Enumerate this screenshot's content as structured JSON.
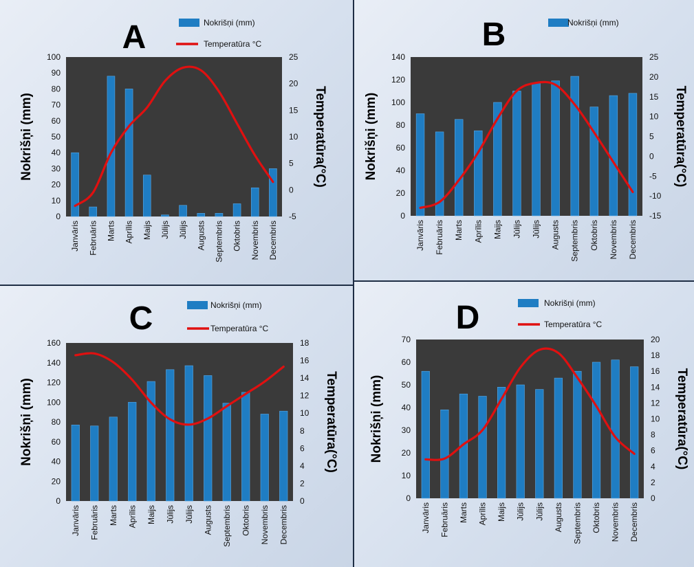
{
  "colors": {
    "plot_background": "#3a3a3a",
    "bar": "#1f7dc3",
    "bar_edge": "#5aa9e6",
    "line": "#e01010",
    "divider": "#1e2d44"
  },
  "months": [
    "Janvāris",
    "Februāris",
    "Marts",
    "Aprīlis",
    "Maijs",
    "Jūlijs",
    "Jūlijs",
    "Augusts",
    "Septembris",
    "Oktobris",
    "Novembris",
    "Decembris"
  ],
  "chart_data": [
    {
      "letter": "A",
      "type": "bar",
      "legend": {
        "bars": "Nokrišņi (mm)",
        "line": "Temperatūra °C"
      },
      "ylabel": "Nokrišņi (mm)",
      "y2label": "Temperatūra(°C)",
      "ylim": [
        0,
        100
      ],
      "yticks": [
        0,
        10,
        20,
        30,
        40,
        50,
        60,
        70,
        80,
        90,
        100
      ],
      "y2lim": [
        -5,
        25
      ],
      "y2ticks": [
        -5,
        0,
        5,
        10,
        15,
        20,
        25
      ],
      "series": [
        {
          "name": "Nokrišņi (mm)",
          "type": "bar",
          "values": [
            40,
            6,
            88,
            80,
            26,
            1,
            7,
            2,
            2,
            8,
            18,
            30
          ]
        },
        {
          "name": "Temperatūra °C",
          "type": "line",
          "values": [
            -3,
            -0.5,
            7,
            12,
            15.5,
            20.5,
            23,
            22.5,
            18.5,
            12.5,
            6.5,
            1.5
          ]
        }
      ]
    },
    {
      "letter": "B",
      "type": "bar",
      "legend": {
        "bars": "Nokrišņi (mm)",
        "line": ""
      },
      "ylabel": "Nokrišņi (mm)",
      "y2label": "Temperatūra(°C)",
      "ylim": [
        0,
        140
      ],
      "yticks": [
        0,
        20,
        40,
        60,
        80,
        100,
        120,
        140
      ],
      "y2lim": [
        -15,
        25
      ],
      "y2ticks": [
        -15,
        -10,
        -5,
        0,
        5,
        10,
        15,
        20,
        25
      ],
      "series": [
        {
          "name": "Nokrišņi (mm)",
          "type": "bar",
          "values": [
            90,
            74,
            85,
            75,
            100,
            110,
            117,
            119,
            123,
            96,
            106,
            108
          ]
        },
        {
          "name": "",
          "type": "line",
          "values": [
            -13,
            -11.5,
            -6,
            1,
            9.5,
            16.5,
            18.5,
            18,
            13,
            6,
            -1.5,
            -9
          ]
        }
      ]
    },
    {
      "letter": "C",
      "type": "bar",
      "legend": {
        "bars": "Nokrišņi (mm)",
        "line": "Temperatūra °C"
      },
      "ylabel": "Nokrišņi (mm)",
      "y2label": "Temperatūra(°C)",
      "ylim": [
        0,
        160
      ],
      "yticks": [
        0,
        20,
        40,
        60,
        80,
        100,
        120,
        140,
        160
      ],
      "y2lim": [
        0,
        18
      ],
      "y2ticks": [
        0,
        2,
        4,
        6,
        8,
        10,
        12,
        14,
        16,
        18
      ],
      "series": [
        {
          "name": "Nokrišņi (mm)",
          "type": "bar",
          "values": [
            77,
            76,
            85,
            100,
            121,
            133,
            137,
            127,
            99,
            110,
            88,
            91
          ]
        },
        {
          "name": "Temperatūra °C",
          "type": "line",
          "values": [
            16.6,
            16.8,
            15.8,
            13.8,
            11.2,
            9.3,
            8.7,
            9.4,
            10.8,
            12.2,
            13.6,
            15.3
          ]
        }
      ]
    },
    {
      "letter": "D",
      "type": "bar",
      "legend": {
        "bars": "Nokrišņi (mm)",
        "line": "Temperatūra °C"
      },
      "ylabel": "Nokrišņi (mm)",
      "y2label": "Temperatūra(°C)",
      "ylim": [
        0,
        70
      ],
      "yticks": [
        0,
        10,
        20,
        30,
        40,
        50,
        60,
        70
      ],
      "y2lim": [
        0,
        20
      ],
      "y2ticks": [
        0,
        2,
        4,
        6,
        8,
        10,
        12,
        14,
        16,
        18,
        20
      ],
      "series": [
        {
          "name": "Nokrišņi (mm)",
          "type": "bar",
          "values": [
            56,
            39,
            46,
            45,
            49,
            50,
            48,
            53,
            56,
            60,
            61,
            58
          ]
        },
        {
          "name": "Temperatūra °C",
          "type": "line",
          "values": [
            4.9,
            5,
            6.8,
            8.6,
            12.5,
            16.5,
            18.7,
            18.3,
            15.2,
            11.6,
            7.7,
            5.6
          ]
        }
      ]
    }
  ]
}
